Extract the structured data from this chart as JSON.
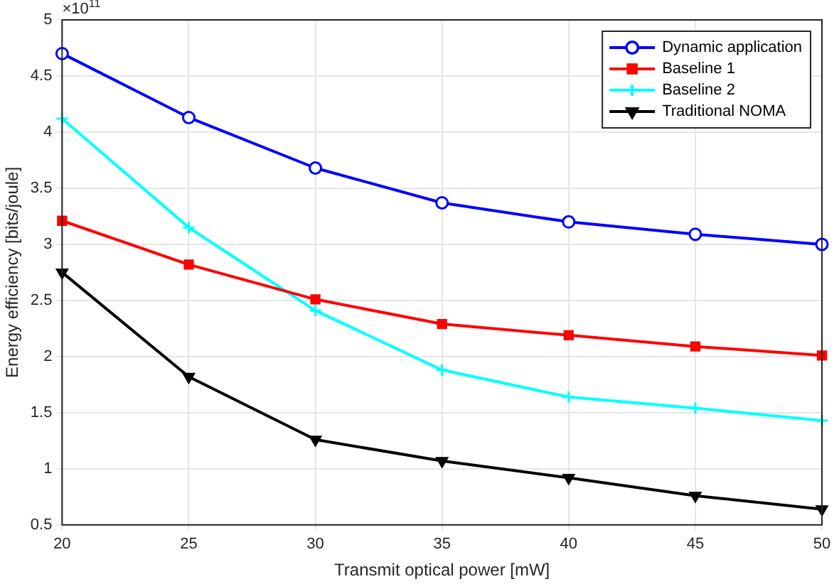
{
  "chart_data": {
    "type": "line",
    "xlabel": "Transmit optical power [mW]",
    "ylabel": "Energy efficiency [bits/joule]",
    "annotations": [
      "×10$^{11}$"
    ],
    "x": [
      20,
      25,
      30,
      35,
      40,
      45,
      50
    ],
    "series": [
      {
        "name": "Dynamic application",
        "color": "#0000ff",
        "marker": "circle",
        "values": [
          4.7,
          4.13,
          3.68,
          3.37,
          3.2,
          3.09,
          3.0
        ]
      },
      {
        "name": "Baseline 1",
        "color": "#ff0000",
        "marker": "square",
        "values": [
          3.21,
          2.82,
          2.51,
          2.29,
          2.19,
          2.09,
          2.01
        ]
      },
      {
        "name": "Baseline 2",
        "color": "#00ffff",
        "marker": "cross",
        "values": [
          4.12,
          3.15,
          2.41,
          1.88,
          1.64,
          1.54,
          1.43
        ]
      },
      {
        "name": "Traditional NOMA",
        "color": "#000000",
        "marker": "triangle",
        "values": [
          2.75,
          1.82,
          1.26,
          1.07,
          0.92,
          0.76,
          0.64
        ]
      }
    ],
    "xlim": [
      20,
      50
    ],
    "xticks": [
      20,
      25,
      30,
      35,
      40,
      45,
      50
    ],
    "ylim": [
      0.5,
      5
    ],
    "yticks": [
      0.5,
      1,
      1.5,
      2,
      2.5,
      3,
      3.5,
      4,
      4.5,
      5
    ],
    "grid": true,
    "legend": "top right",
    "line_style": "solid"
  }
}
